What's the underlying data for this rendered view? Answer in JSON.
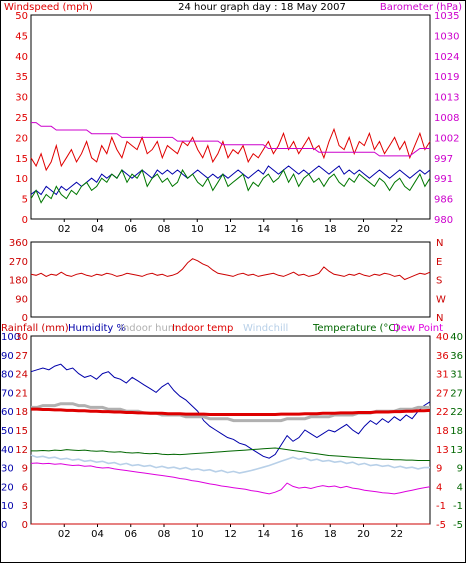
{
  "header": {
    "left_label": "Windspeed (mph)",
    "title": "24 hour graph day : 18 May 2007",
    "right_label": "Barometer (hPa)"
  },
  "colors": {
    "wind_red": "#e00000",
    "wind_green": "#007700",
    "wind_blue": "#0000aa",
    "baro": "#cc00cc",
    "dir": "#cc0000",
    "humidity": "#0000aa",
    "indoor_hum": "#b0b0b0",
    "indoor_temp": "#dd0000",
    "windchill": "#b8d0e8",
    "temperature": "#006600",
    "dew": "#dd00dd",
    "rain": "#cc0000"
  },
  "bottom_legend": {
    "rainfall": "Rainfall (mm)",
    "humidity": "Humidity %",
    "indoor_hum": "Indoor hum",
    "indoor_temp": "Indoor temp",
    "windchill": "Windchill",
    "temperature": "Temperature (°C)",
    "dew": "Dew Point"
  },
  "chart_data": [
    {
      "type": "line",
      "name": "wind-barometer",
      "x_ticks": [
        "02",
        "04",
        "06",
        "08",
        "10",
        "12",
        "14",
        "16",
        "18",
        "20",
        "22"
      ],
      "y_left_ticks": [
        "0",
        "5",
        "10",
        "15",
        "20",
        "25",
        "30",
        "35",
        "40",
        "45",
        "50"
      ],
      "y_left_range": [
        0,
        50
      ],
      "y_right_ticks": [
        "980",
        "986",
        "991",
        "997",
        "1002",
        "1008",
        "1013",
        "1019",
        "1024",
        "1030",
        "1035"
      ],
      "y_right_range": [
        980,
        1035
      ],
      "series": [
        {
          "name": "Windspeed (mph)",
          "values": [
            15,
            13,
            16,
            12,
            14,
            18,
            13,
            15,
            17,
            14,
            16,
            19,
            15,
            14,
            18,
            16,
            20,
            17,
            15,
            19,
            18,
            17,
            20,
            16,
            17,
            19,
            15,
            18,
            17,
            16,
            19,
            18,
            20,
            17,
            15,
            18,
            14,
            16,
            19,
            15,
            17,
            16,
            18,
            14,
            16,
            15,
            17,
            19,
            16,
            18,
            21,
            17,
            19,
            16,
            18,
            20,
            17,
            18,
            15,
            19,
            22,
            18,
            17,
            20,
            16,
            19,
            18,
            21,
            17,
            19,
            16,
            18,
            20,
            17,
            19,
            15,
            18,
            21,
            17,
            19
          ]
        },
        {
          "name": "Wind average",
          "values": [
            6,
            7,
            6,
            8,
            7,
            6,
            8,
            7,
            8,
            9,
            8,
            9,
            10,
            9,
            11,
            10,
            11,
            10,
            12,
            11,
            10,
            11,
            12,
            11,
            10,
            12,
            11,
            12,
            11,
            12,
            11,
            10,
            11,
            12,
            11,
            10,
            11,
            10,
            11,
            10,
            11,
            12,
            11,
            10,
            11,
            12,
            11,
            13,
            12,
            11,
            12,
            13,
            12,
            11,
            12,
            11,
            12,
            13,
            12,
            11,
            12,
            13,
            11,
            12,
            11,
            12,
            11,
            10,
            11,
            12,
            11,
            10,
            11,
            12,
            11,
            10,
            11,
            12,
            11,
            12
          ]
        },
        {
          "name": "Wind lull",
          "values": [
            5,
            7,
            4,
            6,
            5,
            8,
            6,
            5,
            7,
            6,
            8,
            9,
            7,
            8,
            10,
            9,
            11,
            10,
            12,
            9,
            11,
            10,
            12,
            8,
            10,
            11,
            9,
            10,
            8,
            9,
            12,
            10,
            11,
            9,
            8,
            10,
            7,
            9,
            11,
            8,
            9,
            10,
            11,
            7,
            9,
            8,
            10,
            11,
            9,
            10,
            12,
            9,
            11,
            8,
            10,
            11,
            9,
            10,
            8,
            10,
            11,
            9,
            8,
            10,
            9,
            11,
            10,
            9,
            8,
            10,
            9,
            7,
            9,
            10,
            8,
            7,
            9,
            11,
            8,
            10
          ]
        },
        {
          "name": "Barometer (hPa)",
          "axis": "right",
          "values": [
            1006,
            1006,
            1005,
            1005,
            1005,
            1004,
            1004,
            1004,
            1004,
            1004,
            1004,
            1004,
            1003,
            1003,
            1003,
            1003,
            1003,
            1003,
            1002,
            1002,
            1002,
            1002,
            1002,
            1002,
            1002,
            1002,
            1002,
            1002,
            1002,
            1001,
            1001,
            1001,
            1001,
            1001,
            1001,
            1001,
            1001,
            1001,
            1000,
            1000,
            1000,
            1000,
            1000,
            1000,
            1000,
            1000,
            1000,
            999,
            999,
            999,
            999,
            999,
            999,
            999,
            999,
            999,
            999,
            998,
            998,
            998,
            998,
            998,
            998,
            998,
            998,
            998,
            998,
            998,
            998,
            997,
            997,
            997,
            997,
            997,
            997,
            997,
            998,
            999,
            999,
            999
          ]
        }
      ]
    },
    {
      "type": "line",
      "name": "wind-direction",
      "y_left_ticks": [
        "0",
        "90",
        "180",
        "270",
        "360"
      ],
      "y_left_range": [
        0,
        360
      ],
      "y_right_ticks": [
        "N",
        "W",
        "S",
        "E",
        "N"
      ],
      "series": [
        {
          "name": "Wind direction",
          "values": [
            205,
            200,
            210,
            195,
            205,
            200,
            215,
            200,
            195,
            205,
            210,
            200,
            195,
            205,
            200,
            210,
            205,
            195,
            200,
            210,
            205,
            200,
            195,
            205,
            210,
            200,
            205,
            195,
            200,
            210,
            230,
            260,
            280,
            270,
            255,
            245,
            225,
            210,
            205,
            200,
            195,
            205,
            210,
            200,
            205,
            195,
            200,
            205,
            210,
            200,
            195,
            205,
            215,
            200,
            205,
            195,
            200,
            210,
            240,
            220,
            205,
            200,
            195,
            205,
            200,
            210,
            200,
            195,
            205,
            200,
            210,
            205,
            195,
            200,
            180,
            190,
            200,
            210,
            205,
            215
          ]
        }
      ]
    },
    {
      "type": "line",
      "name": "temperature-humidity-rain",
      "x_ticks": [
        "02",
        "04",
        "06",
        "08",
        "10",
        "12",
        "14",
        "16",
        "18",
        "20",
        "22"
      ],
      "y_left_outer_ticks": [
        "0",
        "10",
        "20",
        "30",
        "40",
        "50",
        "60",
        "70",
        "80",
        "90",
        "100"
      ],
      "y_left_outer_range": [
        0,
        100
      ],
      "y_left_inner_ticks": [
        "0",
        "3",
        "6",
        "9",
        "12",
        "15",
        "18",
        "21",
        "24",
        "27",
        "30"
      ],
      "y_left_inner_range": [
        0,
        30
      ],
      "y_right_inner_ticks": [
        "-5",
        "-1",
        "4",
        "9",
        "13",
        "18",
        "22",
        "27",
        "31",
        "36",
        "40"
      ],
      "y_right_outer_ticks": [
        "-5",
        "-1",
        "4",
        "9",
        "13",
        "18",
        "22",
        "27",
        "31",
        "36",
        "40"
      ],
      "y_right_range": [
        -5,
        40
      ],
      "series": [
        {
          "name": "Humidity %",
          "axis": "left-outer",
          "values": [
            81,
            82,
            83,
            82,
            84,
            85,
            82,
            83,
            80,
            78,
            79,
            77,
            80,
            81,
            78,
            77,
            75,
            78,
            76,
            74,
            72,
            70,
            73,
            75,
            71,
            68,
            66,
            63,
            60,
            55,
            52,
            50,
            48,
            46,
            45,
            43,
            42,
            40,
            38,
            36,
            35,
            37,
            42,
            47,
            44,
            46,
            50,
            48,
            46,
            48,
            50,
            49,
            51,
            53,
            50,
            48,
            52,
            55,
            53,
            56,
            54,
            57,
            55,
            58,
            56,
            60,
            63,
            65
          ]
        },
        {
          "name": "Indoor hum",
          "axis": "left-outer",
          "values": [
            62,
            62,
            63,
            63,
            63,
            64,
            64,
            64,
            63,
            63,
            62,
            62,
            62,
            61,
            61,
            61,
            60,
            60,
            60,
            59,
            59,
            59,
            58,
            58,
            58,
            58,
            57,
            57,
            57,
            57,
            56,
            56,
            56,
            56,
            55,
            55,
            55,
            55,
            55,
            55,
            55,
            55,
            55,
            56,
            56,
            56,
            56,
            57,
            57,
            57,
            57,
            58,
            58,
            58,
            58,
            59,
            59,
            59,
            60,
            60,
            60,
            60,
            61,
            61,
            61,
            62,
            62,
            62
          ]
        },
        {
          "name": "Indoor temp",
          "axis": "right",
          "values": [
            22.5,
            22.5,
            22.4,
            22.4,
            22.3,
            22.3,
            22.2,
            22.2,
            22.1,
            22.1,
            22.0,
            22.0,
            21.9,
            21.9,
            21.8,
            21.8,
            21.7,
            21.7,
            21.6,
            21.6,
            21.5,
            21.5,
            21.5,
            21.4,
            21.4,
            21.4,
            21.3,
            21.3,
            21.3,
            21.3,
            21.2,
            21.2,
            21.2,
            21.2,
            21.2,
            21.2,
            21.2,
            21.2,
            21.2,
            21.2,
            21.2,
            21.2,
            21.3,
            21.3,
            21.3,
            21.3,
            21.4,
            21.4,
            21.4,
            21.5,
            21.5,
            21.5,
            21.6,
            21.6,
            21.6,
            21.7,
            21.7,
            21.7,
            21.8,
            21.8,
            21.8,
            21.9,
            21.9,
            22.0,
            22.0,
            22.1,
            22.1,
            22.2
          ]
        },
        {
          "name": "Windchill",
          "axis": "right",
          "values": [
            11.5,
            11.0,
            11.2,
            10.8,
            11.0,
            10.5,
            10.7,
            10.3,
            10.5,
            10.0,
            10.2,
            9.8,
            10.0,
            9.5,
            9.7,
            9.2,
            9.5,
            9.0,
            9.2,
            8.8,
            9.0,
            8.5,
            8.8,
            8.4,
            8.6,
            8.2,
            8.5,
            8.0,
            8.2,
            7.8,
            8.0,
            7.5,
            7.8,
            7.3,
            7.6,
            7.2,
            7.5,
            7.8,
            8.2,
            8.6,
            9.0,
            9.5,
            10.0,
            10.5,
            11.0,
            10.5,
            10.8,
            10.2,
            10.5,
            10.0,
            10.2,
            9.8,
            10.0,
            9.5,
            9.8,
            9.2,
            9.5,
            9.0,
            9.2,
            8.8,
            9.0,
            8.5,
            8.8,
            8.4,
            8.6,
            8.2,
            8.5,
            8.5
          ]
        },
        {
          "name": "Temperature (°C)",
          "axis": "right",
          "values": [
            12.5,
            12.5,
            12.6,
            12.5,
            12.7,
            12.6,
            12.8,
            12.7,
            12.6,
            12.7,
            12.5,
            12.4,
            12.5,
            12.3,
            12.2,
            12.3,
            12.1,
            12.0,
            12.1,
            11.9,
            11.8,
            11.9,
            11.7,
            11.6,
            11.7,
            11.6,
            11.7,
            11.8,
            11.9,
            12.0,
            12.1,
            12.2,
            12.3,
            12.4,
            12.5,
            12.6,
            12.7,
            12.8,
            12.9,
            13.0,
            13.1,
            13.2,
            13.0,
            12.8,
            12.6,
            12.4,
            12.2,
            12.0,
            11.8,
            11.6,
            11.4,
            11.3,
            11.2,
            11.1,
            11.0,
            10.9,
            10.8,
            10.7,
            10.6,
            10.5,
            10.5,
            10.4,
            10.4,
            10.3,
            10.3,
            10.2,
            10.2,
            10.2
          ]
        },
        {
          "name": "Dew Point",
          "axis": "right",
          "values": [
            9.5,
            9.6,
            9.4,
            9.5,
            9.3,
            9.4,
            9.2,
            9.0,
            9.1,
            8.8,
            8.9,
            8.6,
            8.4,
            8.5,
            8.2,
            8.0,
            7.8,
            7.6,
            7.4,
            7.2,
            7.0,
            6.8,
            6.6,
            6.4,
            6.2,
            5.9,
            5.7,
            5.4,
            5.2,
            4.9,
            4.6,
            4.4,
            4.1,
            3.9,
            3.7,
            3.5,
            3.3,
            3.0,
            2.8,
            2.5,
            2.2,
            2.6,
            3.2,
            4.8,
            4.0,
            3.6,
            3.8,
            3.5,
            3.9,
            4.2,
            3.9,
            4.1,
            3.7,
            4.0,
            3.6,
            3.4,
            3.1,
            2.9,
            2.7,
            2.5,
            2.4,
            2.2,
            2.5,
            2.8,
            3.1,
            3.4,
            3.7,
            3.9
          ]
        },
        {
          "name": "Rainfall (mm)",
          "axis": "left-inner",
          "values": [
            0,
            0
          ]
        }
      ]
    }
  ]
}
